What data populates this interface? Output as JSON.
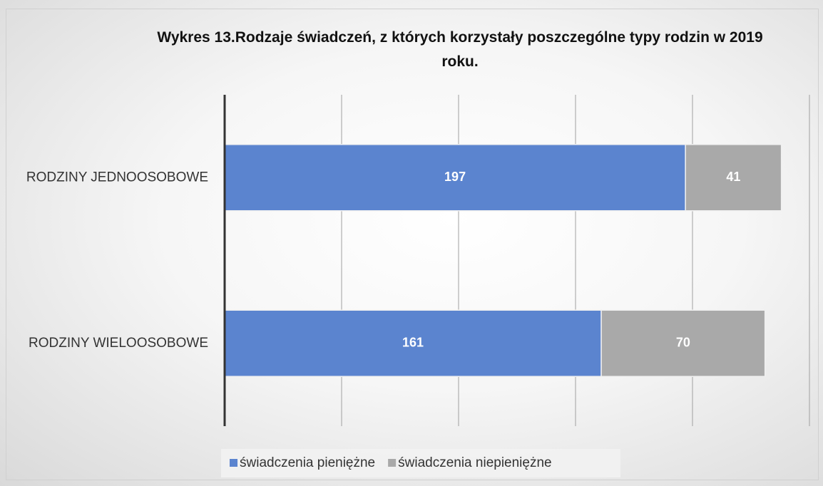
{
  "chart_data": {
    "type": "stacked_barh",
    "title": "Wykres 13.Rodzaje świadczeń, z których korzystały poszczególne typy rodzin w 2019 roku.",
    "categories": [
      "RODZINY JEDNOOSOBOWE",
      "RODZINY WIELOOSOBOWE"
    ],
    "series": [
      {
        "name": "świadczenia pieniężne",
        "color": "#5b84cf",
        "values": [
          197,
          161
        ]
      },
      {
        "name": "świadczenia niepieniężne",
        "color": "#a9a9a9",
        "values": [
          41,
          70
        ]
      }
    ],
    "xlim": [
      0,
      250
    ],
    "xticks": [
      0,
      50,
      100,
      150,
      200,
      250
    ],
    "grid": true,
    "legend": "bottom"
  }
}
